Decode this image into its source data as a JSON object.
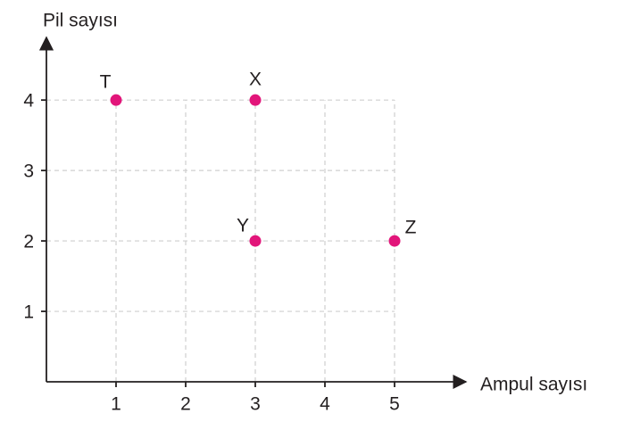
{
  "chart_data": {
    "type": "scatter",
    "x_label": "Ampul sayısı",
    "y_label": "Pil sayısı",
    "labels": [
      "T",
      "X",
      "Y",
      "Z"
    ],
    "x": [
      1,
      3,
      3,
      5
    ],
    "values": [
      4,
      4,
      2,
      2
    ],
    "color": "#e2157a",
    "xlim": [
      0,
      6
    ],
    "ylim": [
      0,
      4.8
    ],
    "xticks": [
      1,
      2,
      3,
      4,
      5
    ],
    "yticks": [
      1,
      2,
      3,
      4
    ],
    "grid": true
  }
}
